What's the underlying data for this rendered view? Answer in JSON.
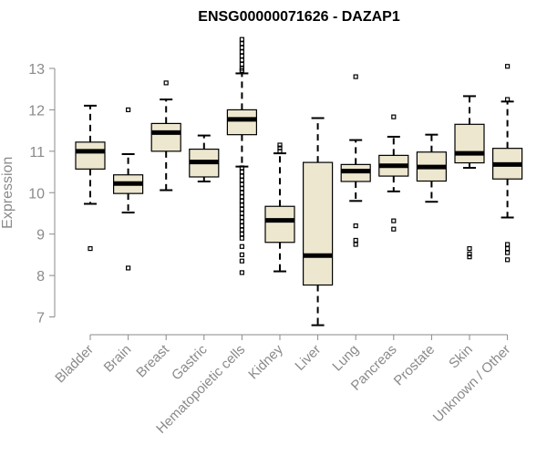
{
  "chart_data": {
    "type": "boxplot",
    "title": "ENSG00000071626 - DAZAP1",
    "xlabel": "",
    "ylabel": "Expression",
    "ylim": [
      6.7,
      13.8
    ],
    "yticks": [
      7,
      8,
      9,
      10,
      11,
      12,
      13
    ],
    "categories": [
      "Bladder",
      "Brain",
      "Breast",
      "Gastric",
      "Hematopoietic cells",
      "Kidney",
      "Liver",
      "Lung",
      "Pancreas",
      "Prostate",
      "Skin",
      "Unknown / Other"
    ],
    "series": [
      {
        "name": "Bladder",
        "whisker_low": 9.73,
        "q1": 10.57,
        "median": 11.0,
        "q3": 11.22,
        "whisker_high": 12.1,
        "outliers": [
          8.65
        ]
      },
      {
        "name": "Brain",
        "whisker_low": 9.52,
        "q1": 9.98,
        "median": 10.22,
        "q3": 10.43,
        "whisker_high": 10.93,
        "outliers": [
          12.0,
          8.18
        ]
      },
      {
        "name": "Breast",
        "whisker_low": 10.06,
        "q1": 11.0,
        "median": 11.45,
        "q3": 11.67,
        "whisker_high": 12.25,
        "outliers": [
          12.65
        ]
      },
      {
        "name": "Gastric",
        "whisker_low": 10.27,
        "q1": 10.38,
        "median": 10.74,
        "q3": 11.05,
        "whisker_high": 11.38,
        "outliers": []
      },
      {
        "name": "Hematopoietic cells",
        "whisker_low": 10.63,
        "q1": 11.4,
        "median": 11.77,
        "q3": 12.0,
        "whisker_high": 12.88,
        "outliers": [
          13.7,
          13.6,
          13.5,
          13.4,
          13.3,
          13.2,
          13.1,
          13.0,
          12.95,
          10.6,
          10.5,
          10.4,
          10.3,
          10.2,
          10.1,
          10.0,
          9.9,
          9.8,
          9.7,
          9.6,
          9.5,
          9.4,
          9.3,
          9.2,
          9.1,
          9.0,
          8.9,
          8.7,
          8.5,
          8.35,
          8.07
        ]
      },
      {
        "name": "Kidney",
        "whisker_low": 8.1,
        "q1": 8.8,
        "median": 9.33,
        "q3": 9.67,
        "whisker_high": 10.95,
        "outliers": [
          11.15,
          11.08,
          11.0
        ]
      },
      {
        "name": "Liver",
        "whisker_low": 6.8,
        "q1": 7.77,
        "median": 8.48,
        "q3": 10.73,
        "whisker_high": 11.8,
        "outliers": []
      },
      {
        "name": "Lung",
        "whisker_low": 9.8,
        "q1": 10.27,
        "median": 10.52,
        "q3": 10.68,
        "whisker_high": 11.27,
        "outliers": [
          12.8,
          9.2,
          8.85,
          8.75
        ]
      },
      {
        "name": "Pancreas",
        "whisker_low": 10.03,
        "q1": 10.4,
        "median": 10.65,
        "q3": 10.9,
        "whisker_high": 11.35,
        "outliers": [
          11.83,
          9.32,
          9.12
        ]
      },
      {
        "name": "Prostate",
        "whisker_low": 9.78,
        "q1": 10.28,
        "median": 10.62,
        "q3": 10.98,
        "whisker_high": 11.4,
        "outliers": []
      },
      {
        "name": "Skin",
        "whisker_low": 10.6,
        "q1": 10.72,
        "median": 10.95,
        "q3": 11.65,
        "whisker_high": 12.33,
        "outliers": [
          8.65,
          8.52,
          8.45
        ]
      },
      {
        "name": "Unknown / Other",
        "whisker_low": 9.4,
        "q1": 10.33,
        "median": 10.68,
        "q3": 11.07,
        "whisker_high": 12.2,
        "outliers": [
          13.05,
          12.25,
          8.75,
          8.65,
          8.55,
          8.38
        ]
      }
    ]
  }
}
